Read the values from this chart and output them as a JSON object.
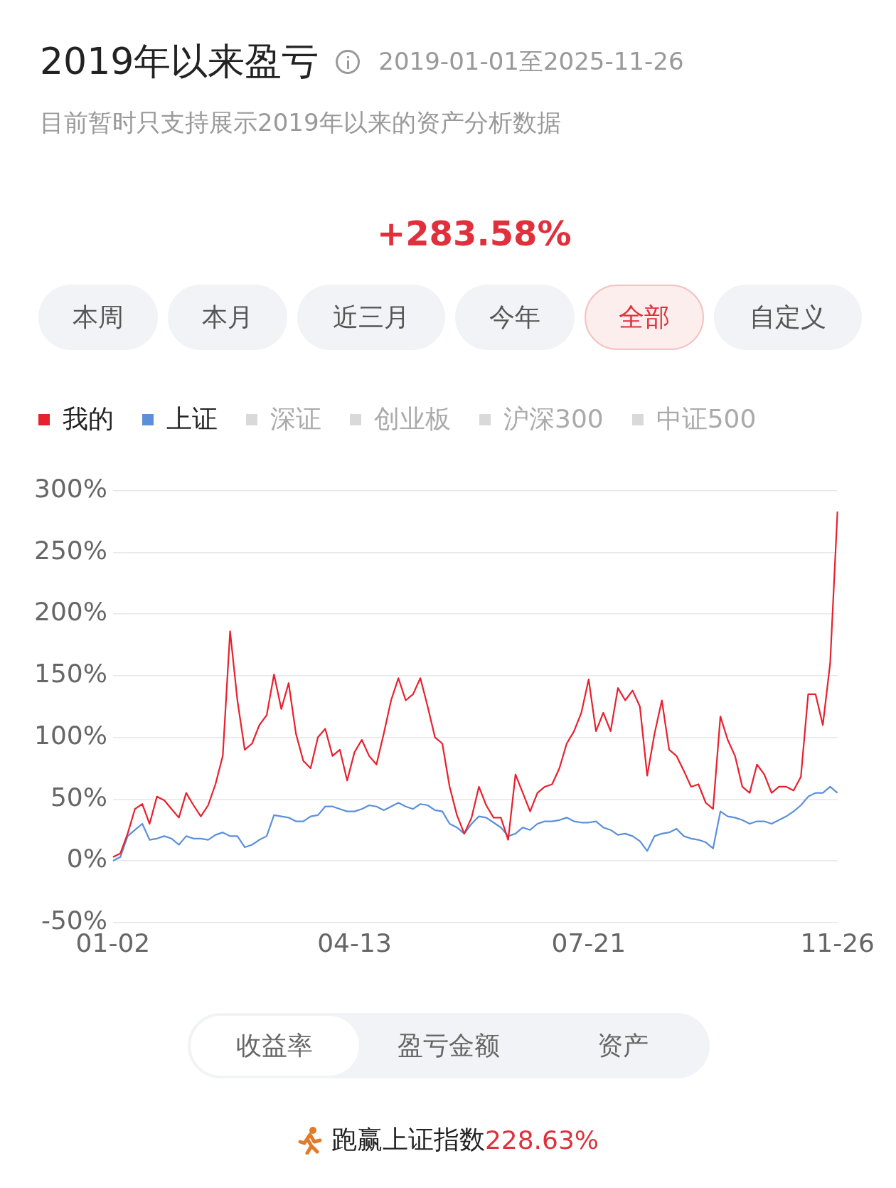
{
  "chart_data": {
    "type": "line",
    "title": "2019年以来盈亏",
    "subtitle": "目前暂时只支持展示2019年以来的资产分析数据",
    "annotations": [
      "2019-01-01至2025-11-26",
      "+283.58%",
      "本周",
      "本月",
      "近三月",
      "今年",
      "全部",
      "自定义",
      "收益率",
      "盈亏金额",
      "资产",
      "跑赢上证指数",
      "228.63%"
    ],
    "categories": [
      "01-02",
      null,
      null,
      null,
      null,
      null,
      null,
      null,
      null,
      null,
      null,
      null,
      null,
      null,
      null,
      null,
      null,
      null,
      null,
      null,
      null,
      null,
      null,
      null,
      null,
      null,
      null,
      null,
      null,
      null,
      null,
      null,
      null,
      "04-13",
      null,
      null,
      null,
      null,
      null,
      null,
      null,
      null,
      null,
      null,
      null,
      null,
      null,
      null,
      null,
      null,
      null,
      null,
      null,
      null,
      null,
      null,
      null,
      null,
      null,
      null,
      null,
      null,
      null,
      null,
      null,
      "07-21",
      null,
      null,
      null,
      null,
      null,
      null,
      null,
      null,
      null,
      null,
      null,
      null,
      null,
      null,
      null,
      null,
      null,
      null,
      null,
      null,
      null,
      null,
      null,
      null,
      null,
      null,
      null,
      null,
      null,
      null,
      null,
      null,
      null,
      "11-26"
    ],
    "series": [
      {
        "name": "我的",
        "color": "#e8202e",
        "values": [
          3,
          6,
          22,
          42,
          46,
          30,
          52,
          49,
          42,
          35,
          55,
          45,
          36,
          45,
          62,
          85,
          186,
          130,
          90,
          95,
          110,
          118,
          151,
          123,
          144,
          103,
          81,
          75,
          100,
          107,
          85,
          90,
          65,
          88,
          98,
          85,
          78,
          103,
          130,
          148,
          130,
          135,
          148,
          125,
          100,
          95,
          60,
          37,
          22,
          35,
          60,
          45,
          35,
          35,
          17,
          70,
          55,
          40,
          55,
          60,
          62,
          75,
          95,
          105,
          120,
          147,
          105,
          120,
          105,
          140,
          130,
          138,
          125,
          69,
          103,
          130,
          90,
          85,
          73,
          60,
          62,
          47,
          42,
          117,
          98,
          85,
          60,
          55,
          78,
          70,
          55,
          60,
          60,
          57,
          68,
          135,
          135,
          110,
          160,
          283
        ]
      },
      {
        "name": "上证",
        "color": "#5b8fd9",
        "values": [
          0,
          3,
          20,
          25,
          30,
          17,
          18,
          20,
          18,
          13,
          20,
          18,
          18,
          17,
          21,
          23,
          20,
          20,
          11,
          13,
          17,
          20,
          37,
          36,
          35,
          32,
          32,
          36,
          37,
          44,
          44,
          42,
          40,
          40,
          42,
          45,
          44,
          41,
          44,
          47,
          44,
          42,
          46,
          45,
          41,
          40,
          30,
          27,
          22,
          30,
          36,
          35,
          31,
          27,
          20,
          22,
          27,
          25,
          30,
          32,
          32,
          33,
          35,
          32,
          31,
          31,
          32,
          27,
          25,
          21,
          22,
          20,
          16,
          8,
          20,
          22,
          23,
          26,
          20,
          18,
          17,
          15,
          10,
          40,
          36,
          35,
          33,
          30,
          32,
          32,
          30,
          33,
          36,
          40,
          45,
          52,
          55,
          55,
          60,
          55
        ]
      },
      {
        "name": "深证",
        "color": "#d9d9d9",
        "values": [
          null,
          null,
          null,
          null,
          null,
          null,
          null,
          null,
          null,
          null,
          null,
          null,
          null,
          null,
          null,
          null,
          null,
          null,
          null,
          null,
          null,
          null,
          null,
          null,
          null,
          null,
          null,
          null,
          null,
          null,
          null,
          null,
          null,
          null,
          null,
          null,
          null,
          null,
          null,
          null,
          null,
          null,
          null,
          null,
          null,
          null,
          null,
          null,
          null,
          null,
          null,
          null,
          null,
          null,
          null,
          null,
          null,
          null,
          null,
          null,
          null,
          null,
          null,
          null,
          null,
          null,
          null,
          null,
          null,
          null,
          null,
          null,
          null,
          null,
          null,
          null,
          null,
          null,
          null,
          null,
          null,
          null,
          null,
          null,
          null,
          null,
          null,
          null,
          null,
          null,
          null,
          null,
          null,
          null,
          null,
          null,
          null,
          null,
          null,
          null
        ]
      },
      {
        "name": "创业板",
        "color": "#d9d9d9",
        "values": [
          null,
          null,
          null,
          null,
          null,
          null,
          null,
          null,
          null,
          null,
          null,
          null,
          null,
          null,
          null,
          null,
          null,
          null,
          null,
          null,
          null,
          null,
          null,
          null,
          null,
          null,
          null,
          null,
          null,
          null,
          null,
          null,
          null,
          null,
          null,
          null,
          null,
          null,
          null,
          null,
          null,
          null,
          null,
          null,
          null,
          null,
          null,
          null,
          null,
          null,
          null,
          null,
          null,
          null,
          null,
          null,
          null,
          null,
          null,
          null,
          null,
          null,
          null,
          null,
          null,
          null,
          null,
          null,
          null,
          null,
          null,
          null,
          null,
          null,
          null,
          null,
          null,
          null,
          null,
          null,
          null,
          null,
          null,
          null,
          null,
          null,
          null,
          null,
          null,
          null,
          null,
          null,
          null,
          null,
          null,
          null,
          null,
          null,
          null,
          null
        ]
      },
      {
        "name": "沪深300",
        "color": "#d9d9d9",
        "values": [
          null,
          null,
          null,
          null,
          null,
          null,
          null,
          null,
          null,
          null,
          null,
          null,
          null,
          null,
          null,
          null,
          null,
          null,
          null,
          null,
          null,
          null,
          null,
          null,
          null,
          null,
          null,
          null,
          null,
          null,
          null,
          null,
          null,
          null,
          null,
          null,
          null,
          null,
          null,
          null,
          null,
          null,
          null,
          null,
          null,
          null,
          null,
          null,
          null,
          null,
          null,
          null,
          null,
          null,
          null,
          null,
          null,
          null,
          null,
          null,
          null,
          null,
          null,
          null,
          null,
          null,
          null,
          null,
          null,
          null,
          null,
          null,
          null,
          null,
          null,
          null,
          null,
          null,
          null,
          null,
          null,
          null,
          null,
          null,
          null,
          null,
          null,
          null,
          null,
          null,
          null,
          null,
          null,
          null,
          null,
          null,
          null,
          null,
          null,
          null
        ]
      },
      {
        "name": "中证500",
        "color": "#d9d9d9",
        "values": [
          null,
          null,
          null,
          null,
          null,
          null,
          null,
          null,
          null,
          null,
          null,
          null,
          null,
          null,
          null,
          null,
          null,
          null,
          null,
          null,
          null,
          null,
          null,
          null,
          null,
          null,
          null,
          null,
          null,
          null,
          null,
          null,
          null,
          null,
          null,
          null,
          null,
          null,
          null,
          null,
          null,
          null,
          null,
          null,
          null,
          null,
          null,
          null,
          null,
          null,
          null,
          null,
          null,
          null,
          null,
          null,
          null,
          null,
          null,
          null,
          null,
          null,
          null,
          null,
          null,
          null,
          null,
          null,
          null,
          null,
          null,
          null,
          null,
          null,
          null,
          null,
          null,
          null,
          null,
          null,
          null,
          null,
          null,
          null,
          null,
          null,
          null,
          null,
          null,
          null,
          null,
          null,
          null,
          null,
          null,
          null,
          null,
          null,
          null,
          null
        ]
      }
    ],
    "ylim": [
      -50,
      300
    ],
    "yticks": [
      {
        "value": -50,
        "label": "-50%"
      },
      {
        "value": 0,
        "label": "0%"
      },
      {
        "value": 50,
        "label": "50%"
      },
      {
        "value": 100,
        "label": "100%"
      },
      {
        "value": 150,
        "label": "150%"
      },
      {
        "value": 200,
        "label": "200%"
      },
      {
        "value": 250,
        "label": "250%"
      },
      {
        "value": 300,
        "label": "300%"
      }
    ],
    "grid": "y",
    "legend": "top left",
    "marker": "none",
    "line_style": "solid"
  }
}
